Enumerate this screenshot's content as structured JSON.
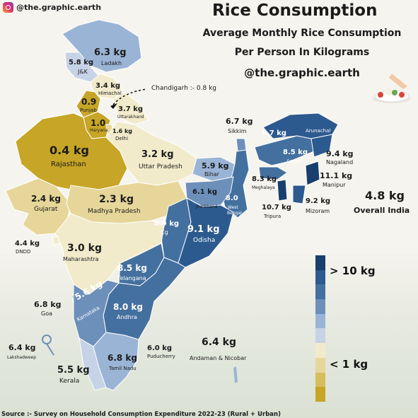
{
  "header": {
    "handle": "@the.graphic.earth",
    "title": "Rice Consumption",
    "subtitle_line1": "Average Monthly Rice Consumption",
    "subtitle_line2": "Per Person In Kilograms",
    "subtitle_handle": "@the.graphic.earth"
  },
  "states": {
    "ladakh": {
      "value": "6.3 kg",
      "name": "Ladakh"
    },
    "jk": {
      "value": "5.8 kg",
      "name": "J&K"
    },
    "himachal": {
      "value": "3.4 kg",
      "name": "Himachal"
    },
    "chandigarh": {
      "label": "Chandigarh :- 0.8 kg"
    },
    "punjab": {
      "value": "0.9",
      "name": "Punjab"
    },
    "uttarakhand": {
      "value": "3.7 kg",
      "name": "Uttarakhand"
    },
    "haryana": {
      "value": "1.0",
      "name": "Haryana"
    },
    "delhi": {
      "value": "1.6 kg",
      "name": "Delhi"
    },
    "rajasthan": {
      "value": "0.4 kg",
      "name": "Rajasthan"
    },
    "up": {
      "value": "3.2 kg",
      "name": "Uttar Pradesh"
    },
    "sikkim": {
      "value": "6.7 kg",
      "name": "Sikkim"
    },
    "arunachal": {
      "value": "9.7 kg",
      "name": "Arunachal"
    },
    "assam": {
      "value": "8.5 kg",
      "name": "Assam"
    },
    "nagaland": {
      "value": "9.4 kg",
      "name": "Nagaland"
    },
    "bihar": {
      "value": "5.9 kg",
      "name": "Bihar"
    },
    "meghalaya": {
      "value": "8.3 kg",
      "name": "Meghalaya"
    },
    "manipur": {
      "value": "11.1 kg",
      "name": "Manipur"
    },
    "gujarat": {
      "value": "2.4 kg",
      "name": "Gujarat"
    },
    "mp": {
      "value": "2.3 kg",
      "name": "Madhya Pradesh"
    },
    "jharkhand": {
      "value": "6.1 kg",
      "name": "Jharkhand"
    },
    "wb": {
      "value": "8.0",
      "name_line1": "West",
      "name_line2": "Bengal"
    },
    "tripura": {
      "value": "10.7 kg",
      "name": "Tripura"
    },
    "mizoram": {
      "value": "9.2 kg",
      "name": "Mizoram"
    },
    "chhattisgarh": {
      "value": "8.9 kg",
      "name": "Cg"
    },
    "odisha": {
      "value": "9.1 kg",
      "name": "Odisha"
    },
    "dndd": {
      "value": "4.4 kg",
      "name": "DNDD"
    },
    "maharashtra": {
      "value": "3.0 kg",
      "name": "Maharashtra"
    },
    "telangana": {
      "value": "8.5 kg",
      "name": "Telangana"
    },
    "goa": {
      "value": "6.8 kg",
      "name": "Goa"
    },
    "karnataka": {
      "value": "5.6 kg",
      "name": "Karnataka"
    },
    "andhra": {
      "value": "8.0 kg",
      "name": "Andhra"
    },
    "lakshadweep": {
      "value": "6.4 kg",
      "name": "Lakshadweep"
    },
    "tamilnadu": {
      "value": "6.8 kg",
      "name": "Tamil Nadu"
    },
    "puducherry": {
      "value": "6.0 kg",
      "name": "Puducherry"
    },
    "andaman": {
      "value": "6.4 kg",
      "name": "Andaman & Nicobar"
    },
    "kerala": {
      "value": "5.5 kg",
      "name": "Kerala"
    }
  },
  "overall": {
    "value": "4.8 kg",
    "name": "Overall India"
  },
  "legend": {
    "high_label": "> 10 kg",
    "low_label": "< 1 kg",
    "colors": [
      "#183f6e",
      "#2c5a8e",
      "#44709f",
      "#6d90bb",
      "#9ab4d6",
      "#c6d3e6",
      "#f1ebcb",
      "#e6d699",
      "#d6be5f",
      "#c6a527"
    ]
  },
  "palette": {
    "rajasthan": "#c6a527",
    "punjab": "#c6a527",
    "haryana": "#c6a527",
    "delhi": "#e6d699",
    "gujarat": "#e6d699",
    "mp": "#e6d699",
    "maharashtra": "#f1ebcb",
    "up": "#f1ebcb",
    "himachal": "#f1ebcb",
    "uttarakhand": "#f1ebcb",
    "dndd": "#f1ebcb",
    "jk": "#c6d3e6",
    "ladakh": "#9ab4d6",
    "bihar": "#9ab4d6",
    "jharkhand": "#6d90bb",
    "karnataka": "#6d90bb",
    "kerala": "#c6d3e6",
    "tamilnadu": "#9ab4d6",
    "sikkim": "#6d90bb",
    "wb": "#44709f",
    "chhattisgarh": "#44709f",
    "odisha": "#2c5a8e",
    "telangana": "#44709f",
    "andhra": "#44709f",
    "assam": "#44709f",
    "arunachal": "#2c5a8e",
    "nagaland": "#2c5a8e",
    "meghalaya": "#44709f",
    "manipur": "#183f6e",
    "mizoram": "#2c5a8e",
    "tripura": "#183f6e",
    "goa": "#6d90bb"
  },
  "source": "Source :- Survey on Household Consumption Expenditure 2022-23 (Rural + Urban)"
}
